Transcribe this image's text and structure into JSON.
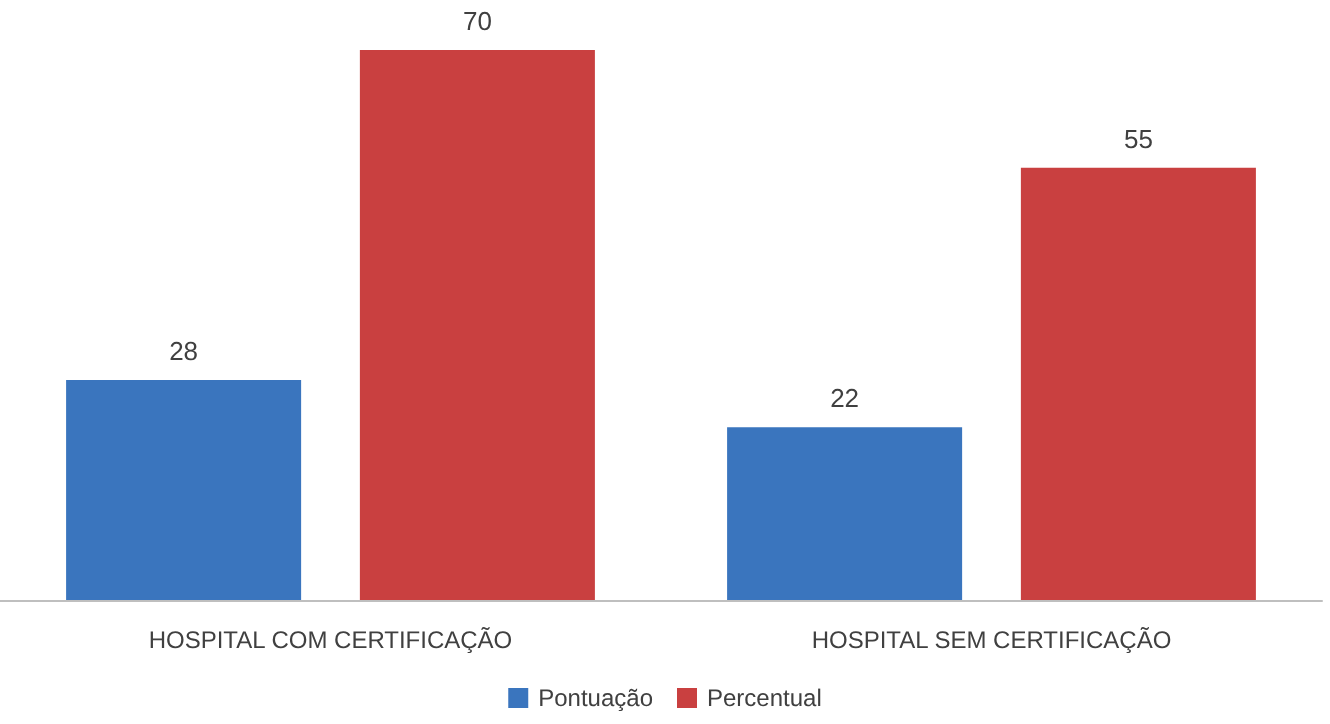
{
  "chart_data": {
    "type": "bar",
    "categories": [
      "HOSPITAL COM CERTIFICAÇÃO",
      "HOSPITAL SEM CERTIFICAÇÃO"
    ],
    "series": [
      {
        "name": "Pontuação",
        "color": "#3a75be",
        "values": [
          28,
          22
        ]
      },
      {
        "name": "Percentual",
        "color": "#c94040",
        "values": [
          70,
          55
        ]
      }
    ],
    "data_labels": true,
    "legend": "bottom"
  }
}
